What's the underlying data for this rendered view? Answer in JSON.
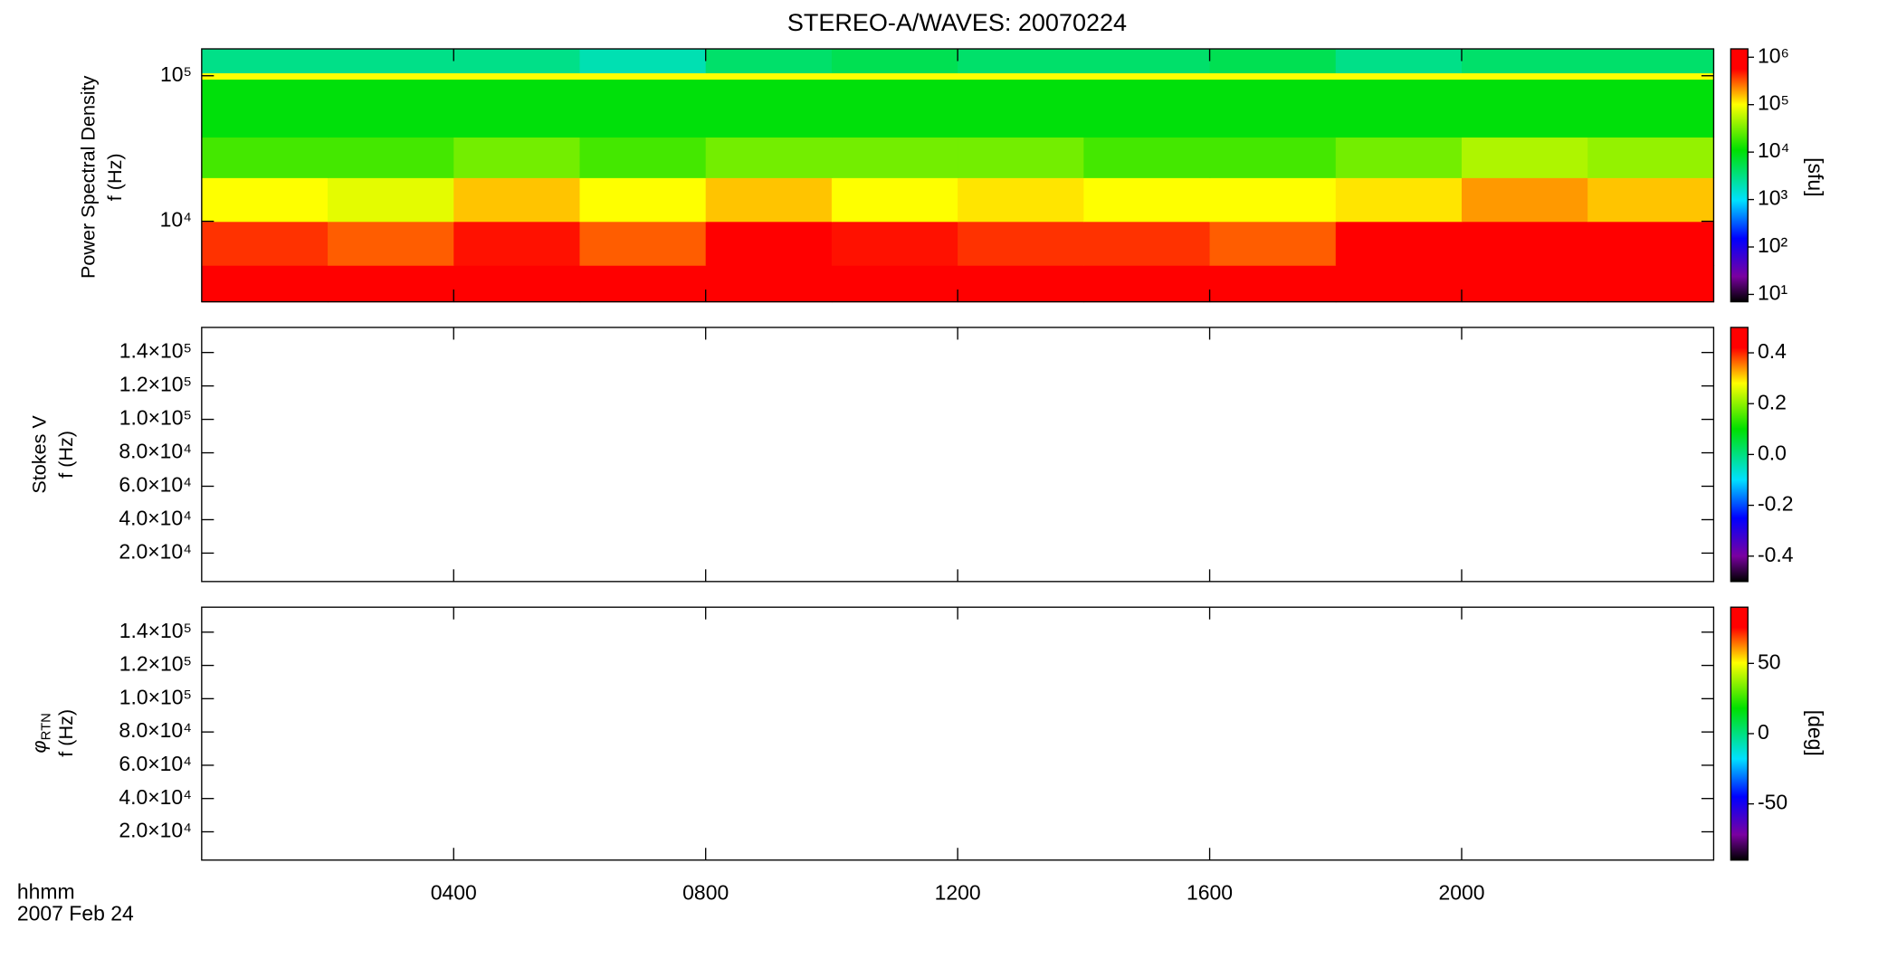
{
  "chart_data": [
    {
      "type": "heatmap",
      "title": "STEREO-A/WAVES: 20070224",
      "ylabel": "Power Spectral Density",
      "ylabel2": "f (Hz)",
      "ylog": true,
      "ylim": [
        2800,
        153000
      ],
      "yticks": [
        {
          "value": 10000,
          "label": "10⁴"
        },
        {
          "value": 100000,
          "label": "10⁵"
        }
      ],
      "xlim": [
        0,
        24
      ],
      "xbins": [
        0,
        2,
        4,
        6,
        8,
        10,
        12,
        14,
        16,
        18,
        20,
        22,
        24
      ],
      "ybins": [
        2800,
        5000,
        10000,
        20000,
        38000,
        95000,
        105000,
        153000
      ],
      "z": [
        [
          600000,
          800000,
          1000000,
          800000,
          1000000,
          1000000,
          1000000,
          1000000,
          1000000,
          1000000,
          1000000,
          1000000
        ],
        [
          400000,
          300000,
          500000,
          300000,
          600000,
          500000,
          400000,
          400000,
          300000,
          600000,
          700000,
          600000
        ],
        [
          100000,
          80000,
          150000,
          100000,
          150000,
          100000,
          120000,
          100000,
          100000,
          120000,
          200000,
          150000
        ],
        [
          20000,
          20000,
          30000,
          20000,
          30000,
          30000,
          30000,
          20000,
          20000,
          30000,
          50000,
          40000
        ],
        [
          10000,
          10000,
          10000,
          10000,
          10000,
          10000,
          10000,
          10000,
          10000,
          10000,
          10000,
          10000
        ],
        [
          100000,
          100000,
          100000,
          100000,
          100000,
          100000,
          100000,
          100000,
          100000,
          100000,
          100000,
          100000
        ],
        [
          3000,
          3000,
          3000,
          2000,
          4000,
          5000,
          4000,
          4000,
          5000,
          3000,
          4000,
          4000
        ]
      ],
      "colorbar": {
        "label": "[sfu]",
        "log": true,
        "lim": [
          7,
          1500000
        ],
        "ticks": [
          {
            "value": 10,
            "label": "10¹"
          },
          {
            "value": 100,
            "label": "10²"
          },
          {
            "value": 1000,
            "label": "10³"
          },
          {
            "value": 10000,
            "label": "10⁴"
          },
          {
            "value": 100000,
            "label": "10⁵"
          },
          {
            "value": 1000000,
            "label": "10⁶"
          }
        ]
      }
    },
    {
      "type": "heatmap",
      "ylabel": "Stokes V",
      "ylabel2": "f (Hz)",
      "ylog": false,
      "ylim": [
        3000,
        155000
      ],
      "yticks": [
        {
          "value": 20000,
          "label": "2.0×10⁴"
        },
        {
          "value": 40000,
          "label": "4.0×10⁴"
        },
        {
          "value": 60000,
          "label": "6.0×10⁴"
        },
        {
          "value": 80000,
          "label": "8.0×10⁴"
        },
        {
          "value": 100000,
          "label": "1.0×10⁵"
        },
        {
          "value": 120000,
          "label": "1.2×10⁵"
        },
        {
          "value": 140000,
          "label": "1.4×10⁵"
        }
      ],
      "xlim": [
        0,
        24
      ],
      "colorbar": {
        "log": false,
        "lim": [
          -0.5,
          0.5
        ],
        "ticks": [
          -0.4,
          -0.2,
          {
            "value": 0,
            "label": "0.0"
          },
          0.2,
          0.4
        ]
      }
    },
    {
      "type": "heatmap",
      "ylabel_symbol": "φ",
      "ylabel_subscript": "RTN",
      "ylabel2": "f (Hz)",
      "ylog": false,
      "ylim": [
        3000,
        155000
      ],
      "yticks": [
        {
          "value": 20000,
          "label": "2.0×10⁴"
        },
        {
          "value": 40000,
          "label": "4.0×10⁴"
        },
        {
          "value": 60000,
          "label": "6.0×10⁴"
        },
        {
          "value": 80000,
          "label": "8.0×10⁴"
        },
        {
          "value": 100000,
          "label": "1.0×10⁵"
        },
        {
          "value": 120000,
          "label": "1.2×10⁵"
        },
        {
          "value": 140000,
          "label": "1.4×10⁵"
        }
      ],
      "xlim": [
        0,
        24
      ],
      "xticks": [
        {
          "value": 4,
          "label": "0400"
        },
        {
          "value": 8,
          "label": "0800"
        },
        {
          "value": 12,
          "label": "1200"
        },
        {
          "value": 16,
          "label": "1600"
        },
        {
          "value": 20,
          "label": "2000"
        }
      ],
      "xlabel": "hhmm",
      "date_label": "2007 Feb 24",
      "colorbar": {
        "label": "[deg]",
        "log": false,
        "lim": [
          -90,
          90
        ],
        "ticks": [
          -50,
          0,
          50
        ]
      }
    }
  ]
}
